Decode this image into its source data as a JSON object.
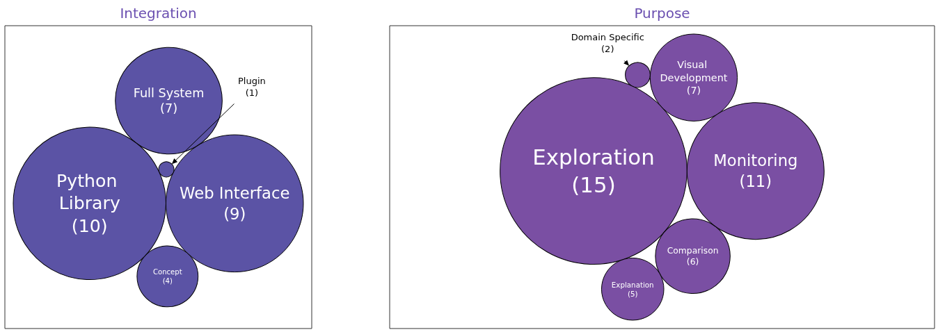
{
  "chart_data": [
    {
      "type": "other",
      "title": "Integration",
      "categories": [
        "Web Interface",
        "Concept",
        "Plugin",
        "Full System",
        "Python Library"
      ],
      "values": [
        9,
        4,
        1,
        7,
        10
      ],
      "value_labels": [
        "(9)",
        "(4)",
        "(1)",
        "(7)",
        "(10)"
      ],
      "color": "#5b53a5"
    },
    {
      "type": "other",
      "title": "Purpose",
      "categories": [
        "Exploration",
        "Comparison",
        "Explanation",
        "Visual Development",
        "Domain Specific",
        "Monitoring"
      ],
      "values": [
        15,
        6,
        5,
        7,
        2,
        11
      ],
      "value_labels": [
        "(15)",
        "(6)",
        "(5)",
        "(7)",
        "(2)",
        "(11)"
      ],
      "color": "#7a4fa3"
    }
  ]
}
